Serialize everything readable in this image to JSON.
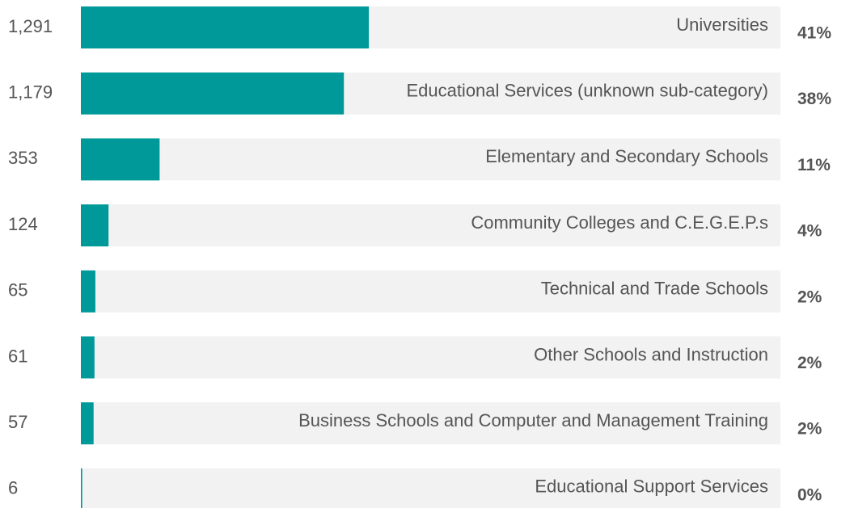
{
  "chart_data": {
    "type": "bar",
    "orientation": "horizontal",
    "categories": [
      "Universities",
      "Educational Services (unknown sub-category)",
      "Elementary and Secondary Schools",
      "Community Colleges and C.E.G.E.P.s",
      "Technical and Trade Schools",
      "Other Schools and Instruction",
      "Business Schools and Computer and Management Training",
      "Educational Support Services"
    ],
    "values": [
      1291,
      1179,
      353,
      124,
      65,
      61,
      57,
      6
    ],
    "value_labels": [
      "1,291",
      "1,179",
      "353",
      "124",
      "65",
      "61",
      "57",
      "6"
    ],
    "shares": [
      41,
      38,
      11,
      4,
      2,
      2,
      2,
      0
    ],
    "share_labels": [
      "41%",
      "38%",
      "11%",
      "4%",
      "2%",
      "2%",
      "2%",
      "0%"
    ],
    "color": "#009999",
    "xlim": [
      0,
      3136
    ]
  }
}
